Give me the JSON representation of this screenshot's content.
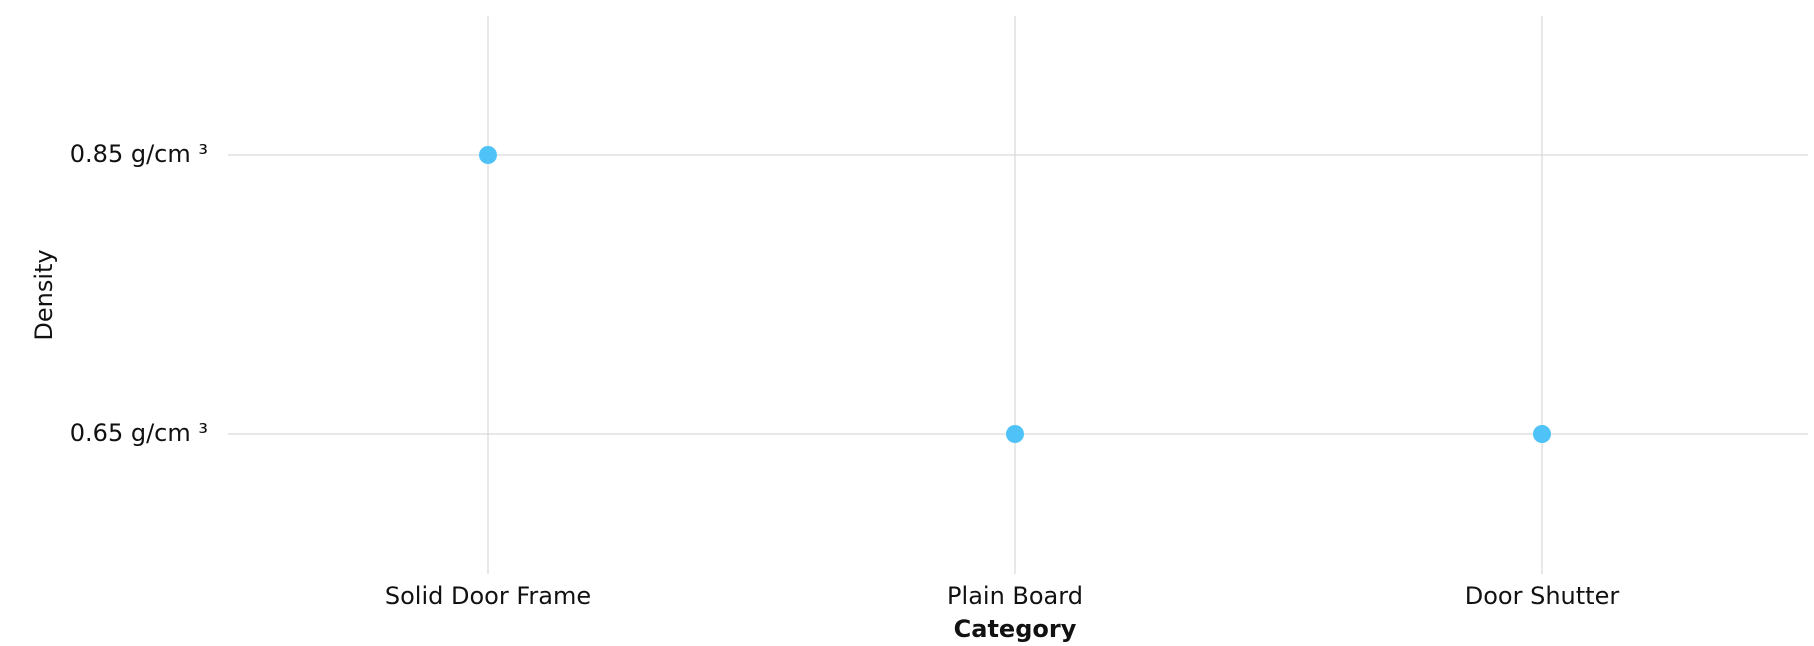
{
  "colors": {
    "point": "#4fc3f7",
    "grid": "#d2d2d2",
    "text": "#111111",
    "background": "#ffffff"
  },
  "chart_data": {
    "type": "scatter",
    "title": "",
    "xlabel": "Category",
    "ylabel": "Density",
    "categories": [
      "Solid Door Frame",
      "Plain Board",
      "Door Shutter"
    ],
    "y_unit": "g/cm ³",
    "y_ticks": [
      0.85,
      0.65
    ],
    "y_tick_labels": [
      "0.85 g/cm ³",
      "0.65 g/cm ³"
    ],
    "ylim": [
      0.55,
      0.95
    ],
    "grid": true,
    "legend": "none",
    "series": [
      {
        "values": [
          0.85,
          0.65,
          0.65
        ]
      }
    ]
  }
}
